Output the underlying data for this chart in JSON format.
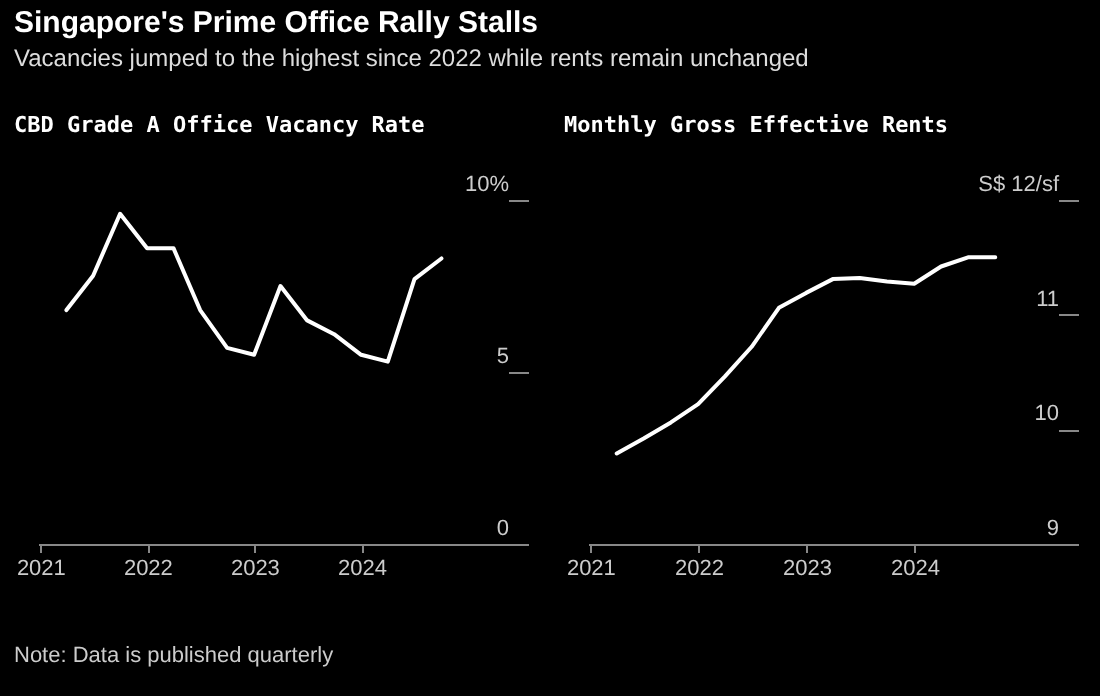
{
  "chart_data": [
    {
      "type": "other",
      "title": "Singapore's Prime Office Rally Stalls",
      "subtitle": "Vacancies jumped to the highest since 2022 while rents remain unchanged",
      "annotations": [
        "Note: Data is published quarterly"
      ]
    },
    {
      "type": "line",
      "title": "CBD Grade A Office Vacancy Rate",
      "x": [
        "2021-03-31",
        "2021-06-30",
        "2021-09-30",
        "2021-12-31",
        "2022-03-31",
        "2022-06-30",
        "2022-09-30",
        "2022-12-31",
        "2023-03-31",
        "2023-06-30",
        "2023-09-30",
        "2023-12-31",
        "2024-03-31",
        "2024-06-30",
        "2024-09-30"
      ],
      "series": [
        {
          "color": "#ffffff",
          "values": [
            6.8,
            7.8,
            9.6,
            8.6,
            8.6,
            6.8,
            5.7,
            5.5,
            7.5,
            6.5,
            6.1,
            5.5,
            5.3,
            7.7,
            8.3
          ]
        }
      ],
      "xlim": [
        "2020-12-24",
        "2025-05-15"
      ],
      "xticks": [
        "2021",
        "2022",
        "2023",
        "2024"
      ],
      "ylim": [
        0,
        10
      ],
      "yticks": [
        {
          "value": 10,
          "label": "10%"
        },
        5,
        0
      ],
      "grid": false,
      "legend": false
    },
    {
      "type": "line",
      "title": "Monthly Gross Effective Rents",
      "x": [
        "2021-03-31",
        "2021-06-30",
        "2021-09-30",
        "2021-12-31",
        "2022-03-31",
        "2022-06-30",
        "2022-09-30",
        "2022-12-31",
        "2023-03-31",
        "2023-06-30",
        "2023-09-30",
        "2023-12-31",
        "2024-03-31",
        "2024-06-30",
        "2024-09-30"
      ],
      "series": [
        {
          "color": "#ffffff",
          "values": [
            9.79,
            9.92,
            10.06,
            10.22,
            10.46,
            10.72,
            11.06,
            11.19,
            11.31,
            11.32,
            11.29,
            11.27,
            11.42,
            11.5,
            11.5
          ]
        }
      ],
      "xlim": [
        "2020-12-24",
        "2025-04-30"
      ],
      "xticks": [
        "2021",
        "2022",
        "2023",
        "2024"
      ],
      "ylim": [
        9,
        12
      ],
      "yticks": [
        {
          "value": 12,
          "label": "S$ 12/sf"
        },
        11,
        10,
        9
      ],
      "grid": false,
      "legend": false
    }
  ]
}
